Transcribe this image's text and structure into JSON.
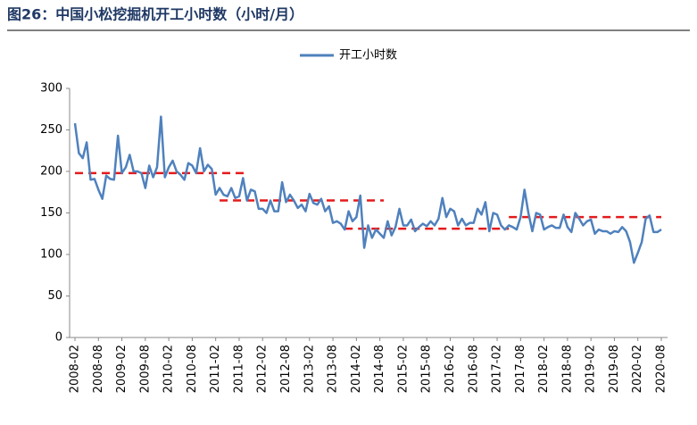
{
  "chart_data": {
    "type": "line",
    "title": "图26：中国小松挖掘机开工小时数（小时/月）",
    "categories": [
      "2008-02",
      null,
      null,
      null,
      null,
      null,
      "2008-08",
      null,
      null,
      null,
      null,
      null,
      "2009-02",
      null,
      null,
      null,
      null,
      null,
      "2009-08",
      null,
      null,
      null,
      null,
      null,
      "2010-02",
      null,
      null,
      null,
      null,
      null,
      "2010-08",
      null,
      null,
      null,
      null,
      null,
      "2011-02",
      null,
      null,
      null,
      null,
      null,
      "2011-08",
      null,
      null,
      null,
      null,
      null,
      "2012-02",
      null,
      null,
      null,
      null,
      null,
      "2012-08",
      null,
      null,
      null,
      null,
      null,
      "2013-02",
      null,
      null,
      null,
      null,
      null,
      "2013-08",
      null,
      null,
      null,
      null,
      null,
      "2014-02",
      null,
      null,
      null,
      null,
      null,
      "2014-08",
      null,
      null,
      null,
      null,
      null,
      "2015-02",
      null,
      null,
      null,
      null,
      null,
      "2015-08",
      null,
      null,
      null,
      null,
      null,
      "2016-02",
      null,
      null,
      null,
      null,
      null,
      "2016-08",
      null,
      null,
      null,
      null,
      null,
      "2017-02",
      null,
      null,
      null,
      null,
      null,
      "2017-08",
      null,
      null,
      null,
      null,
      null,
      "2018-02",
      null,
      null,
      null,
      null,
      null,
      "2018-08",
      null,
      null,
      null,
      null,
      null,
      "2019-02",
      null,
      null,
      null,
      null,
      null,
      "2019-08",
      null,
      null,
      null,
      null,
      null,
      "2020-02",
      null,
      null,
      null,
      null,
      null,
      "2020-08"
    ],
    "series": [
      {
        "name": "开工小时数",
        "color": "#4f81bd",
        "values": [
          258,
          222,
          216,
          235,
          190,
          191,
          178,
          167,
          195,
          191,
          190,
          243,
          198,
          205,
          220,
          200,
          200,
          198,
          180,
          207,
          193,
          205,
          266,
          193,
          205,
          213,
          200,
          196,
          190,
          210,
          207,
          198,
          228,
          200,
          208,
          203,
          172,
          180,
          172,
          170,
          180,
          168,
          170,
          192,
          165,
          178,
          176,
          155,
          155,
          150,
          165,
          152,
          152,
          187,
          163,
          172,
          165,
          156,
          160,
          152,
          173,
          162,
          160,
          167,
          152,
          158,
          138,
          140,
          137,
          130,
          152,
          140,
          145,
          171,
          108,
          135,
          120,
          130,
          125,
          120,
          140,
          123,
          133,
          155,
          135,
          135,
          142,
          128,
          133,
          137,
          134,
          140,
          135,
          143,
          168,
          145,
          155,
          152,
          135,
          143,
          135,
          138,
          138,
          155,
          148,
          163,
          128,
          150,
          148,
          135,
          130,
          135,
          133,
          130,
          145,
          178,
          150,
          128,
          150,
          148,
          130,
          133,
          135,
          132,
          132,
          148,
          133,
          127,
          150,
          143,
          135,
          140,
          142,
          125,
          130,
          128,
          128,
          125,
          128,
          127,
          133,
          128,
          115,
          90,
          102,
          115,
          143,
          147,
          127,
          127,
          130
        ]
      }
    ],
    "reference_lines": [
      {
        "value": 198,
        "start": 0,
        "end": 44,
        "color": "#e41a1c"
      },
      {
        "value": 165,
        "start": 37,
        "end": 79,
        "color": "#e41a1c"
      },
      {
        "value": 131,
        "start": 69,
        "end": 111,
        "color": "#e41a1c"
      },
      {
        "value": 145,
        "start": 111,
        "end": 150,
        "color": "#e41a1c"
      }
    ],
    "ylim": [
      0,
      300
    ],
    "yticks": [
      0,
      50,
      100,
      150,
      200,
      250,
      300
    ],
    "grid": false,
    "legend": "top"
  }
}
